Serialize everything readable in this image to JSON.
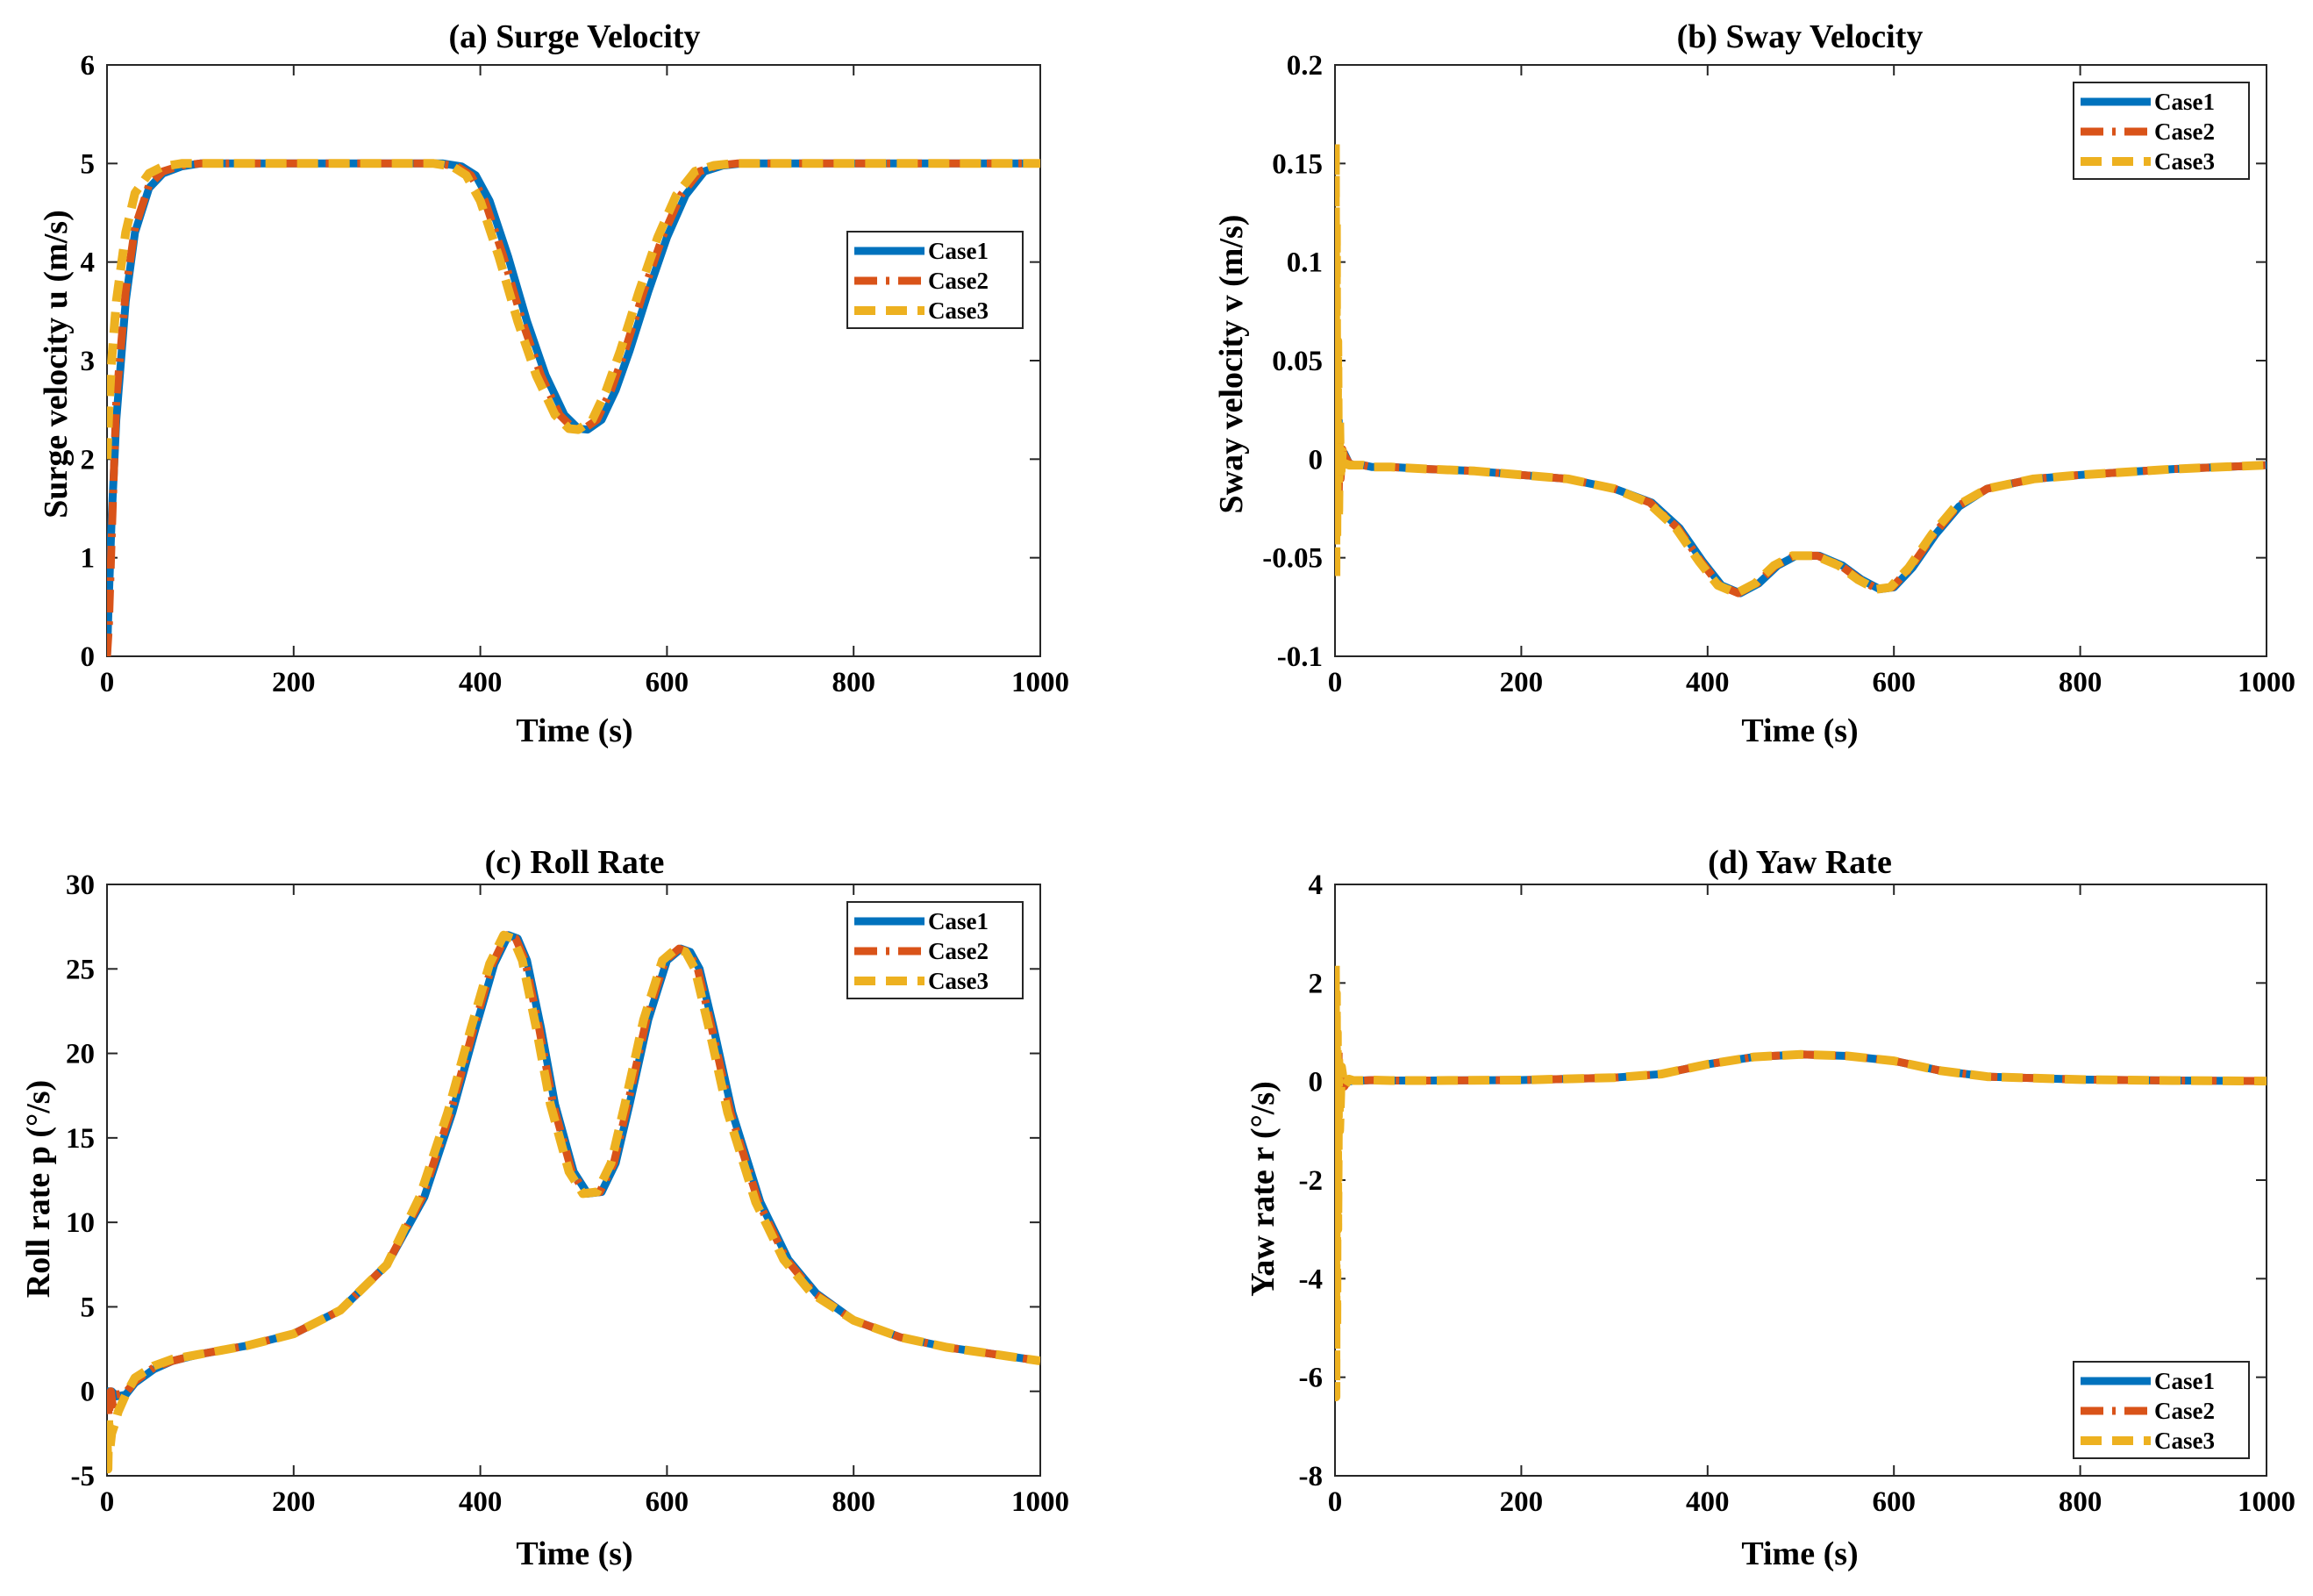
{
  "figure": {
    "background": "#ffffff"
  },
  "series_styles": [
    {
      "name": "Case1",
      "color": "#0072BD",
      "dash": "solid"
    },
    {
      "name": "Case2",
      "color": "#D95319",
      "dash": "dashdot"
    },
    {
      "name": "Case3",
      "color": "#EDB120",
      "dash": "dashed"
    }
  ],
  "chart_data": [
    {
      "type": "line",
      "title": "(a) Surge Velocity",
      "xlabel": "Time (s)",
      "ylabel": "Surge velocity u (m/s)",
      "xlim": [
        0,
        1000
      ],
      "ylim": [
        0,
        6
      ],
      "xticks": [
        0,
        200,
        400,
        600,
        800,
        1000
      ],
      "yticks": [
        0,
        1,
        2,
        3,
        4,
        5,
        6
      ],
      "legend": {
        "position": "center-right"
      },
      "series": [
        {
          "name": "Case1",
          "x": [
            0,
            2,
            5,
            10,
            20,
            30,
            45,
            60,
            80,
            100,
            200,
            300,
            360,
            380,
            395,
            410,
            430,
            450,
            470,
            490,
            505,
            515,
            530,
            545,
            560,
            580,
            600,
            620,
            640,
            660,
            680,
            700,
            800,
            900,
            1000
          ],
          "y": [
            0,
            0.6,
            1.4,
            2.4,
            3.6,
            4.3,
            4.75,
            4.9,
            4.97,
            5.0,
            5.0,
            5.0,
            5.0,
            4.97,
            4.88,
            4.62,
            4.05,
            3.4,
            2.85,
            2.45,
            2.31,
            2.3,
            2.4,
            2.7,
            3.1,
            3.7,
            4.25,
            4.68,
            4.92,
            4.98,
            5.0,
            5.0,
            5.0,
            5.0,
            5.0
          ]
        },
        {
          "name": "Case2",
          "x": [
            0,
            2,
            5,
            10,
            20,
            30,
            45,
            60,
            80,
            100,
            200,
            300,
            355,
            375,
            390,
            405,
            425,
            445,
            465,
            485,
            500,
            510,
            525,
            540,
            555,
            575,
            595,
            615,
            635,
            655,
            675,
            700,
            800,
            900,
            1000
          ],
          "y": [
            0,
            0.3,
            1.2,
            2.6,
            3.7,
            4.35,
            4.78,
            4.92,
            4.98,
            5.0,
            5.0,
            5.0,
            5.0,
            4.97,
            4.88,
            4.62,
            4.05,
            3.4,
            2.85,
            2.45,
            2.31,
            2.3,
            2.4,
            2.7,
            3.1,
            3.7,
            4.25,
            4.68,
            4.92,
            4.98,
            5.0,
            5.0,
            5.0,
            5.0,
            5.0
          ]
        },
        {
          "name": "Case3",
          "x": [
            0,
            2,
            5,
            10,
            20,
            30,
            45,
            60,
            80,
            100,
            200,
            300,
            350,
            370,
            385,
            400,
            420,
            440,
            460,
            480,
            495,
            505,
            520,
            535,
            550,
            570,
            590,
            610,
            630,
            650,
            670,
            700,
            800,
            900,
            1000
          ],
          "y": [
            2.0,
            2.5,
            3.0,
            3.6,
            4.3,
            4.7,
            4.9,
            4.97,
            5.0,
            5.0,
            5.0,
            5.0,
            5.0,
            4.97,
            4.88,
            4.62,
            4.05,
            3.4,
            2.85,
            2.45,
            2.31,
            2.3,
            2.4,
            2.7,
            3.1,
            3.7,
            4.25,
            4.68,
            4.92,
            4.98,
            5.0,
            5.0,
            5.0,
            5.0,
            5.0
          ]
        }
      ]
    },
    {
      "type": "line",
      "title": "(b) Sway Velocity",
      "xlabel": "Time (s)",
      "ylabel": "Sway velocity v (m/s)",
      "xlim": [
        0,
        1000
      ],
      "ylim": [
        -0.1,
        0.2
      ],
      "xticks": [
        0,
        200,
        400,
        600,
        800,
        1000
      ],
      "yticks": [
        -0.1,
        -0.05,
        0,
        0.05,
        0.1,
        0.15,
        0.2
      ],
      "ytick_labels": [
        "-0.1",
        "-0.05",
        "0",
        "0.05",
        "0.1",
        "0.15",
        "0.2"
      ],
      "legend": {
        "position": "top-right"
      },
      "series": [
        {
          "name": "Case1",
          "x": [
            0,
            1,
            2,
            3,
            4,
            5,
            6,
            8,
            10,
            15,
            20,
            30,
            40,
            60,
            100,
            150,
            200,
            250,
            300,
            340,
            370,
            395,
            415,
            435,
            455,
            475,
            495,
            520,
            545,
            565,
            585,
            600,
            620,
            645,
            670,
            700,
            750,
            800,
            900,
            1000
          ],
          "y": [
            0,
            0.01,
            0.04,
            -0.02,
            0.02,
            -0.01,
            0.005,
            -0.002,
            0.003,
            -0.002,
            -0.003,
            -0.003,
            -0.004,
            -0.004,
            -0.005,
            -0.006,
            -0.008,
            -0.01,
            -0.015,
            -0.022,
            -0.035,
            -0.052,
            -0.064,
            -0.068,
            -0.063,
            -0.054,
            -0.049,
            -0.049,
            -0.054,
            -0.061,
            -0.066,
            -0.065,
            -0.055,
            -0.038,
            -0.024,
            -0.015,
            -0.01,
            -0.008,
            -0.005,
            -0.003
          ]
        },
        {
          "name": "Case2",
          "x": [
            0,
            1,
            2,
            3,
            4,
            5,
            6,
            8,
            10,
            15,
            20,
            30,
            40,
            60,
            100,
            150,
            200,
            250,
            300,
            338,
            368,
            393,
            413,
            433,
            453,
            473,
            493,
            518,
            543,
            563,
            583,
            598,
            618,
            643,
            668,
            700,
            750,
            800,
            900,
            1000
          ],
          "y": [
            0,
            0.03,
            -0.03,
            0.02,
            -0.02,
            0.01,
            -0.01,
            0.005,
            0.002,
            -0.002,
            -0.003,
            -0.003,
            -0.004,
            -0.004,
            -0.005,
            -0.006,
            -0.008,
            -0.01,
            -0.015,
            -0.022,
            -0.035,
            -0.052,
            -0.064,
            -0.068,
            -0.063,
            -0.054,
            -0.049,
            -0.049,
            -0.054,
            -0.061,
            -0.066,
            -0.065,
            -0.055,
            -0.038,
            -0.024,
            -0.015,
            -0.01,
            -0.008,
            -0.005,
            -0.003
          ]
        },
        {
          "name": "Case3",
          "x": [
            0,
            0.5,
            1,
            1.5,
            2,
            3,
            4,
            5,
            6,
            8,
            10,
            15,
            20,
            30,
            40,
            60,
            100,
            150,
            200,
            250,
            300,
            336,
            366,
            391,
            411,
            431,
            451,
            471,
            491,
            516,
            541,
            561,
            581,
            596,
            616,
            641,
            666,
            700,
            750,
            800,
            900,
            1000
          ],
          "y": [
            0,
            0.16,
            -0.06,
            0.12,
            -0.04,
            0.06,
            -0.03,
            0.02,
            -0.01,
            0.004,
            -0.002,
            -0.003,
            -0.003,
            -0.003,
            -0.004,
            -0.004,
            -0.005,
            -0.006,
            -0.008,
            -0.01,
            -0.015,
            -0.022,
            -0.035,
            -0.052,
            -0.064,
            -0.068,
            -0.063,
            -0.054,
            -0.049,
            -0.049,
            -0.054,
            -0.061,
            -0.066,
            -0.065,
            -0.055,
            -0.038,
            -0.024,
            -0.015,
            -0.01,
            -0.008,
            -0.005,
            -0.003
          ]
        }
      ]
    },
    {
      "type": "line",
      "title": "(c) Roll Rate",
      "xlabel": "Time (s)",
      "ylabel": "Roll rate p (°/s)",
      "xlim": [
        0,
        1000
      ],
      "ylim": [
        -5,
        30
      ],
      "xticks": [
        0,
        200,
        400,
        600,
        800,
        1000
      ],
      "yticks": [
        -5,
        0,
        5,
        10,
        15,
        20,
        25,
        30
      ],
      "legend": {
        "position": "top-right"
      },
      "series": [
        {
          "name": "Case1",
          "x": [
            0,
            5,
            10,
            20,
            30,
            50,
            70,
            100,
            150,
            200,
            250,
            300,
            340,
            370,
            395,
            415,
            430,
            440,
            450,
            465,
            480,
            500,
            515,
            530,
            545,
            560,
            580,
            600,
            615,
            625,
            635,
            650,
            670,
            700,
            730,
            760,
            800,
            850,
            900,
            950,
            1000
          ],
          "y": [
            0,
            0,
            -0.3,
            -0.2,
            0.5,
            1.3,
            1.8,
            2.2,
            2.7,
            3.4,
            4.8,
            7.5,
            11.5,
            16.5,
            21.5,
            25.3,
            27.0,
            26.8,
            25.5,
            21.5,
            17.0,
            13.0,
            11.7,
            11.8,
            13.5,
            17.0,
            22.0,
            25.5,
            26.2,
            26.0,
            25.0,
            21.5,
            16.5,
            11.2,
            7.8,
            5.8,
            4.2,
            3.2,
            2.6,
            2.2,
            1.8
          ]
        },
        {
          "name": "Case2",
          "x": [
            0,
            2,
            4,
            6,
            10,
            20,
            30,
            50,
            70,
            100,
            150,
            200,
            250,
            300,
            338,
            368,
            393,
            413,
            428,
            438,
            448,
            463,
            478,
            498,
            513,
            528,
            543,
            558,
            578,
            598,
            613,
            623,
            633,
            648,
            668,
            698,
            728,
            758,
            800,
            850,
            900,
            950,
            1000
          ],
          "y": [
            0,
            -1.5,
            0,
            -0.8,
            -0.2,
            -0.1,
            0.6,
            1.4,
            1.8,
            2.2,
            2.7,
            3.4,
            4.8,
            7.5,
            11.5,
            16.5,
            21.5,
            25.3,
            27.0,
            26.8,
            25.5,
            21.5,
            17.0,
            13.0,
            11.7,
            11.8,
            13.5,
            17.0,
            22.0,
            25.5,
            26.2,
            26.0,
            25.0,
            21.5,
            16.5,
            11.2,
            7.8,
            5.8,
            4.2,
            3.2,
            2.6,
            2.2,
            1.8
          ]
        },
        {
          "name": "Case3",
          "x": [
            0,
            1,
            2,
            3,
            5,
            8,
            12,
            20,
            30,
            50,
            70,
            100,
            150,
            200,
            250,
            300,
            335,
            365,
            390,
            410,
            425,
            435,
            445,
            460,
            475,
            495,
            510,
            525,
            540,
            555,
            575,
            595,
            610,
            620,
            630,
            645,
            665,
            695,
            725,
            755,
            800,
            850,
            900,
            950,
            1000
          ],
          "y": [
            -2.5,
            -4.6,
            -1.5,
            -3.5,
            -2.5,
            -2.0,
            -1.2,
            -0.2,
            0.8,
            1.5,
            1.9,
            2.2,
            2.7,
            3.4,
            4.8,
            7.5,
            11.5,
            16.5,
            21.5,
            25.3,
            27.0,
            26.8,
            25.5,
            21.5,
            17.0,
            13.0,
            11.7,
            11.8,
            13.5,
            17.0,
            22.0,
            25.5,
            26.2,
            26.0,
            25.0,
            21.5,
            16.5,
            11.2,
            7.8,
            5.8,
            4.2,
            3.2,
            2.6,
            2.2,
            1.8
          ]
        }
      ]
    },
    {
      "type": "line",
      "title": "(d) Yaw Rate",
      "xlabel": "Time (s)",
      "ylabel": "Yaw rate r (°/s)",
      "xlim": [
        0,
        1000
      ],
      "ylim": [
        -8,
        4
      ],
      "xticks": [
        0,
        200,
        400,
        600,
        800,
        1000
      ],
      "yticks": [
        -8,
        -6,
        -4,
        -2,
        0,
        2,
        4
      ],
      "legend": {
        "position": "bottom-right"
      },
      "series": [
        {
          "name": "Case1",
          "x": [
            0,
            1,
            2,
            3,
            4,
            6,
            8,
            10,
            15,
            20,
            30,
            40,
            60,
            100,
            200,
            300,
            350,
            400,
            450,
            500,
            550,
            600,
            650,
            700,
            800,
            900,
            1000
          ],
          "y": [
            0,
            -1.2,
            0.6,
            -0.6,
            0.3,
            0.1,
            -0.1,
            0.05,
            0.0,
            0.02,
            0.02,
            0.03,
            0.02,
            0.02,
            0.03,
            0.08,
            0.15,
            0.35,
            0.5,
            0.55,
            0.52,
            0.42,
            0.22,
            0.1,
            0.04,
            0.02,
            0.01
          ]
        },
        {
          "name": "Case2",
          "x": [
            0,
            1,
            2,
            3,
            4,
            6,
            8,
            10,
            15,
            20,
            30,
            40,
            60,
            100,
            200,
            300,
            350,
            400,
            450,
            500,
            550,
            600,
            650,
            700,
            800,
            900,
            1000
          ],
          "y": [
            0,
            -1.5,
            1.0,
            -1.0,
            0.6,
            -0.3,
            0.2,
            -0.1,
            0.05,
            0.02,
            0.02,
            0.03,
            0.02,
            0.02,
            0.03,
            0.08,
            0.15,
            0.35,
            0.5,
            0.55,
            0.52,
            0.42,
            0.22,
            0.1,
            0.04,
            0.02,
            0.01
          ]
        },
        {
          "name": "Case3",
          "x": [
            0,
            0.5,
            1,
            1.5,
            2,
            2.5,
            3,
            4,
            5,
            7,
            10,
            15,
            20,
            30,
            40,
            60,
            100,
            200,
            300,
            350,
            400,
            450,
            500,
            550,
            600,
            650,
            700,
            800,
            900,
            1000
          ],
          "y": [
            0,
            2.4,
            -6.4,
            1.8,
            -5.0,
            1.0,
            -3.0,
            0.5,
            -1.0,
            0.3,
            -0.1,
            0.05,
            0.02,
            0.02,
            0.03,
            0.02,
            0.02,
            0.03,
            0.08,
            0.15,
            0.35,
            0.5,
            0.55,
            0.52,
            0.42,
            0.22,
            0.1,
            0.04,
            0.02,
            0.01
          ]
        }
      ]
    }
  ]
}
